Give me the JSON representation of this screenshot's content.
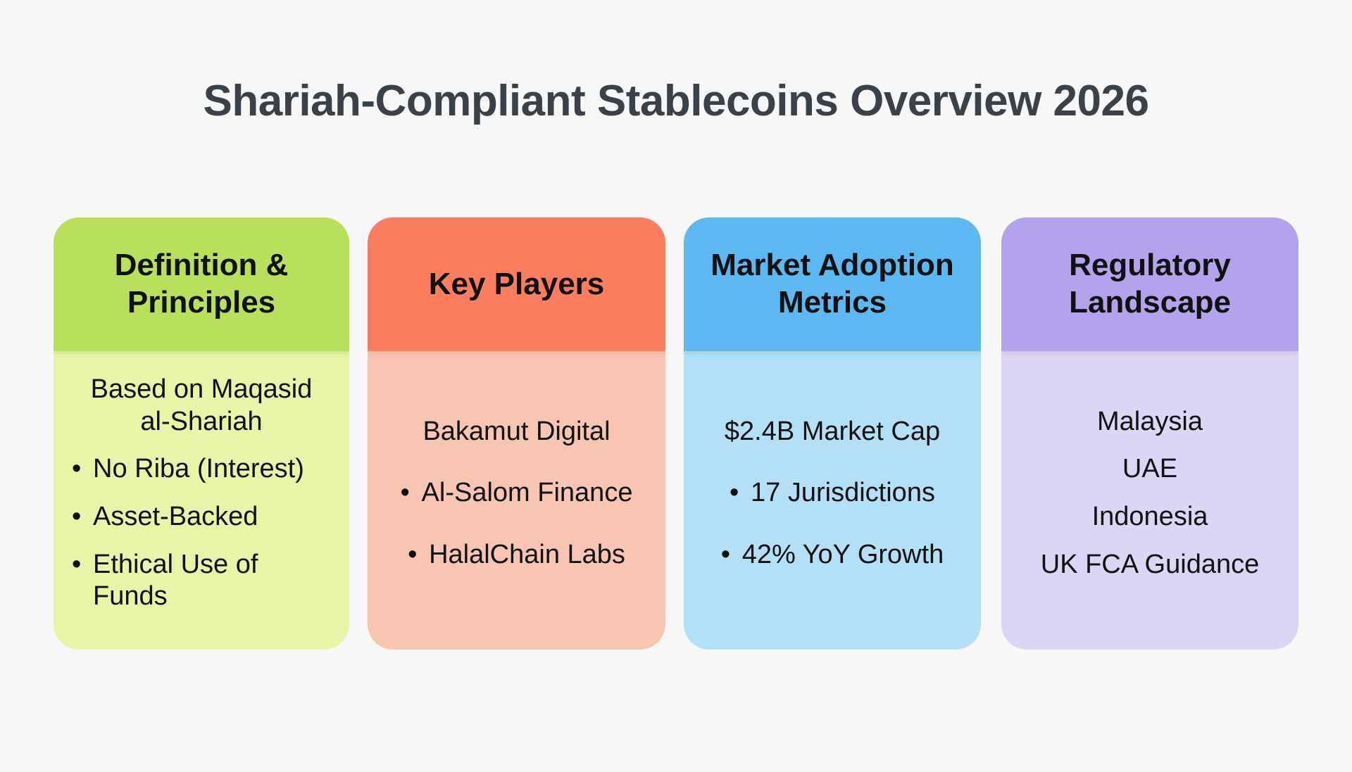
{
  "title": "Shariah-Compliant Stablecoins Overview 2026",
  "cards": [
    {
      "title": "Definition & Principles",
      "items": [
        "Based on Maqasid al-Shariah",
        "No Riba (Interest)",
        "Asset-Backed",
        "Ethical Use of Funds"
      ]
    },
    {
      "title": "Key Players",
      "items": [
        "Bakamut Digital",
        "Al-Salom Finance",
        "HalalChain Labs"
      ]
    },
    {
      "title": "Market Adoption Metrics",
      "items": [
        "$2.4B Market Cap",
        "17 Jurisdictions",
        "42% YoY Growth"
      ]
    },
    {
      "title": "Regulatory Landscape",
      "items": [
        "Malaysia",
        "UAE",
        "Indonesia",
        "UK FCA Guidance"
      ]
    }
  ]
}
